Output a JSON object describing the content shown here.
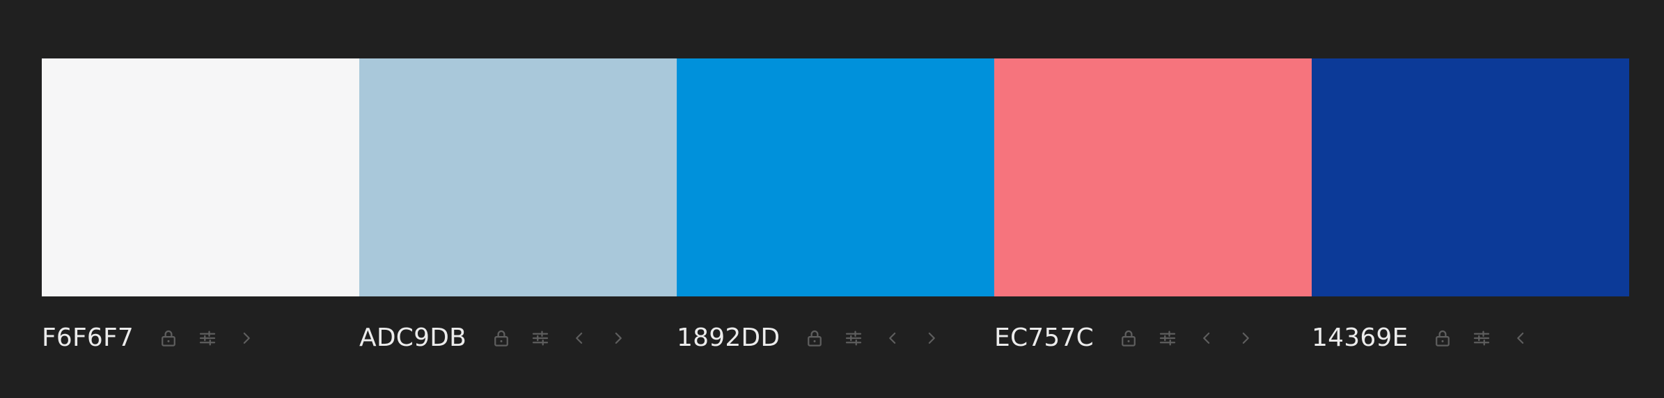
{
  "palette": {
    "colors": [
      {
        "hex": "F6F6F7",
        "color": "#F6F6F7",
        "controls": [
          "lock-icon",
          "adjust-icon",
          "chevron-right-icon"
        ]
      },
      {
        "hex": "ADC9DB",
        "color": "#A9C8DA",
        "controls": [
          "lock-icon",
          "adjust-icon",
          "chevron-left-icon",
          "chevron-right-icon"
        ]
      },
      {
        "hex": "1892DD",
        "color": "#0091DB",
        "controls": [
          "lock-icon",
          "adjust-icon",
          "chevron-left-icon",
          "chevron-right-icon"
        ]
      },
      {
        "hex": "EC757C",
        "color": "#F6747D",
        "controls": [
          "lock-icon",
          "adjust-icon",
          "chevron-left-icon",
          "chevron-right-icon"
        ]
      },
      {
        "hex": "14369E",
        "color": "#0C3A98",
        "controls": [
          "lock-icon",
          "adjust-icon",
          "chevron-left-icon"
        ]
      }
    ]
  },
  "theme": {
    "background": "#202020",
    "label_text": "#ECECEC",
    "icon_color": "#5E5E5E"
  }
}
